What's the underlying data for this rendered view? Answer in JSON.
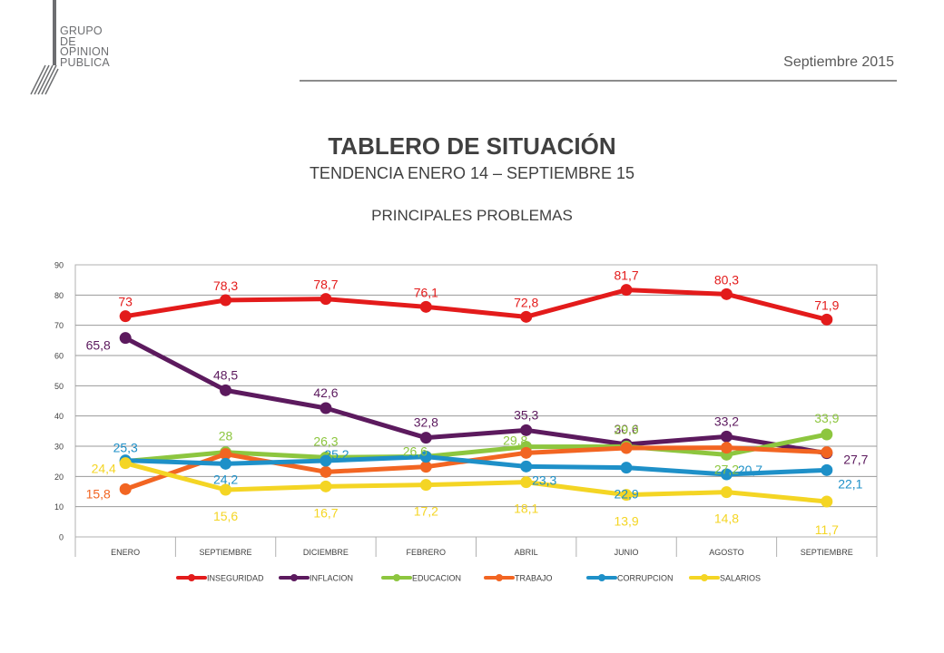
{
  "header": {
    "logo_lines": [
      "GRUPO",
      "DE",
      "OPINION",
      "PUBLICA"
    ],
    "date": "Septiembre 2015"
  },
  "titles": {
    "title": "TABLERO DE SITUACIÓN",
    "subtitle": "TENDENCIA ENERO 14 – SEPTIEMBRE 15",
    "section": "PRINCIPALES PROBLEMAS"
  },
  "chart_data": {
    "type": "line",
    "categories": [
      "ENERO",
      "SEPTIEMBRE",
      "DICIEMBRE",
      "FEBRERO",
      "ABRIL",
      "JUNIO",
      "AGOSTO",
      "SEPTIEMBRE"
    ],
    "ylim": [
      0,
      90
    ],
    "yticks": [
      0,
      10,
      20,
      30,
      40,
      50,
      60,
      70,
      80,
      90
    ],
    "grid": true,
    "legend_position": "bottom",
    "series": [
      {
        "name": "INSEGURIDAD",
        "color": "#e31b1b",
        "values": [
          73,
          78.3,
          78.7,
          76.1,
          72.8,
          81.7,
          80.3,
          71.9
        ],
        "labels": [
          "73",
          "78,3",
          "78,7",
          "76,1",
          "72,8",
          "81,7",
          "80,3",
          "71,9"
        ]
      },
      {
        "name": "INFLACION",
        "color": "#5c1a5e",
        "values": [
          65.8,
          48.5,
          42.6,
          32.8,
          35.3,
          30.6,
          33.2,
          27.7
        ],
        "labels": [
          "65,8",
          "48,5",
          "42,6",
          "32,8",
          "35,3",
          "30,6",
          "33,2",
          "27,7"
        ]
      },
      {
        "name": "EDUCACION",
        "color": "#8dc63f",
        "values": [
          25.0,
          28,
          26.3,
          26.6,
          29.8,
          29.9,
          27.2,
          33.9
        ],
        "labels": [
          "",
          "28",
          "26,3",
          "26,6",
          "29,8",
          "29,9",
          "27,2",
          "33,9"
        ]
      },
      {
        "name": "TRABAJO",
        "color": "#f26522",
        "values": [
          15.8,
          27.4,
          21.5,
          23.2,
          27.8,
          29.4,
          29.5,
          28.0
        ],
        "labels": [
          "15,8",
          "",
          "",
          "",
          "",
          "",
          "",
          ""
        ]
      },
      {
        "name": "CORRUPCION",
        "color": "#1e90c8",
        "values": [
          25.3,
          24.2,
          25.2,
          26.5,
          23.3,
          22.9,
          20.7,
          22.1
        ],
        "labels": [
          "25,3",
          "24,2",
          "25,2",
          "",
          "23,3",
          "22,9",
          "20,7",
          "22,1"
        ]
      },
      {
        "name": "SALARIOS",
        "color": "#f4d524",
        "values": [
          24.4,
          15.6,
          16.7,
          17.2,
          18.1,
          13.9,
          14.8,
          11.7
        ],
        "labels": [
          "24,4",
          "15,6",
          "16,7",
          "17,2",
          "18,1",
          "13,9",
          "14,8",
          "11,7"
        ]
      }
    ]
  }
}
